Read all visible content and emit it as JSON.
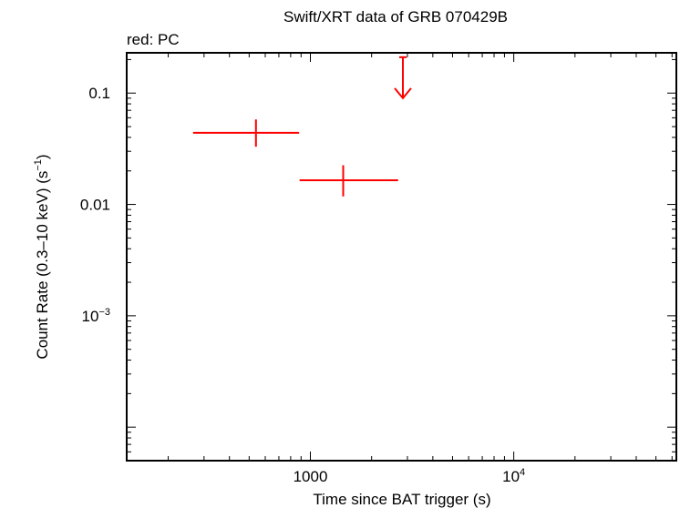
{
  "chart_data": {
    "type": "scatter",
    "title": "Swift/XRT data of GRB 070429B",
    "subtitle": "red: PC",
    "xlabel": "Time since BAT trigger (s)",
    "ylabel": "Count Rate (0.3–10 keV) (s",
    "ylabel_sup": "−1",
    "ylabel_tail": ")",
    "xscale": "log",
    "yscale": "log",
    "xlim": [
      125,
      63000
    ],
    "ylim": [
      5e-05,
      0.23
    ],
    "x_ticks": [
      {
        "value": 1000,
        "label": "1000",
        "sup": ""
      },
      {
        "value": 10000,
        "label": "10",
        "sup": "4"
      }
    ],
    "y_ticks": [
      {
        "value": 0.1,
        "label": "0.1",
        "sup": ""
      },
      {
        "value": 0.01,
        "label": "0.01",
        "sup": ""
      },
      {
        "value": 0.001,
        "label": "10",
        "sup": "−3"
      }
    ],
    "series": [
      {
        "color": "#ff0000",
        "points": [
          {
            "x": 540,
            "xerr_low": 265,
            "xerr_high": 880,
            "y": 0.044,
            "yerr_low": 0.033,
            "yerr_high": 0.058
          },
          {
            "x": 1450,
            "xerr_low": 885,
            "xerr_high": 2700,
            "y": 0.0165,
            "yerr_low": 0.0118,
            "yerr_high": 0.0225
          }
        ],
        "upper_limits": [
          {
            "x": 2850,
            "y": 0.21,
            "arrow_to": 0.09
          }
        ]
      }
    ]
  }
}
